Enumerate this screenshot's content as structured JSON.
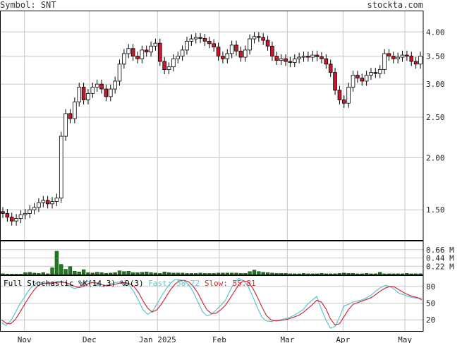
{
  "header": {
    "symbol_prefix": "Symbol:",
    "symbol": "SNT",
    "brand": "stockta.com"
  },
  "colors": {
    "up_candle": "#ffffff",
    "down_candle": "#c9182b",
    "volume_bar": "#1f7a1f",
    "fast_line": "#5ec3cf",
    "slow_line": "#cc2d3a",
    "grid": "#c8c8c8",
    "frame": "#000000"
  },
  "stochastic": {
    "title": "Full Stochastic %K(14,3) %D(3)",
    "fast_label": "Fast:",
    "fast_value": "58.72",
    "slow_label": "Slow:",
    "slow_value": "55.81"
  },
  "chart_data": [
    {
      "type": "candlestick",
      "scale": "log",
      "ylim": [
        1.27,
        4.5
      ],
      "yticks": [
        "4.00",
        "3.50",
        "3.00",
        "2.50",
        "2.00",
        "1.50"
      ],
      "xticks": [
        "Nov",
        "Dec",
        "Jan 2025",
        "Feb",
        "Mar",
        "Apr",
        "May"
      ],
      "closes": [
        1.47,
        1.44,
        1.41,
        1.43,
        1.46,
        1.47,
        1.5,
        1.52,
        1.56,
        1.58,
        1.55,
        1.57,
        1.6,
        2.25,
        2.55,
        2.48,
        2.72,
        2.95,
        2.75,
        2.85,
        2.95,
        3.0,
        2.92,
        2.8,
        2.92,
        3.05,
        3.35,
        3.55,
        3.65,
        3.5,
        3.45,
        3.62,
        3.58,
        3.7,
        3.76,
        3.4,
        3.25,
        3.3,
        3.45,
        3.5,
        3.62,
        3.8,
        3.85,
        3.88,
        3.86,
        3.8,
        3.75,
        3.68,
        3.5,
        3.45,
        3.55,
        3.72,
        3.6,
        3.48,
        3.62,
        3.85,
        3.9,
        3.88,
        3.82,
        3.7,
        3.5,
        3.42,
        3.45,
        3.4,
        3.38,
        3.45,
        3.48,
        3.5,
        3.48,
        3.52,
        3.49,
        3.45,
        3.35,
        3.2,
        2.9,
        2.75,
        2.7,
        2.95,
        3.15,
        3.1,
        3.05,
        3.15,
        3.2,
        3.18,
        3.25,
        3.55,
        3.5,
        3.45,
        3.48,
        3.52,
        3.5,
        3.4,
        3.35,
        3.5
      ],
      "volume": {
        "unit": "M",
        "yticks": [
          "0.66",
          "0.44",
          "0.22"
        ],
        "ylim": [
          0,
          0.9
        ],
        "values": [
          0.02,
          0.01,
          0.01,
          0.01,
          0.01,
          0.05,
          0.06,
          0.04,
          0.03,
          0.05,
          0.02,
          0.18,
          0.62,
          0.27,
          0.14,
          0.21,
          0.09,
          0.07,
          0.13,
          0.05,
          0.04,
          0.06,
          0.05,
          0.03,
          0.04,
          0.05,
          0.1,
          0.08,
          0.09,
          0.05,
          0.05,
          0.06,
          0.07,
          0.05,
          0.04,
          0.03,
          0.07,
          0.05,
          0.04,
          0.04,
          0.04,
          0.03,
          0.03,
          0.03,
          0.04,
          0.03,
          0.03,
          0.03,
          0.04,
          0.04,
          0.04,
          0.04,
          0.04,
          0.03,
          0.03,
          0.08,
          0.12,
          0.08,
          0.06,
          0.05,
          0.04,
          0.03,
          0.03,
          0.03,
          0.02,
          0.02,
          0.02,
          0.03,
          0.02,
          0.02,
          0.02,
          0.03,
          0.02,
          0.02,
          0.02,
          0.03,
          0.04,
          0.03,
          0.03,
          0.02,
          0.02,
          0.03,
          0.02,
          0.02,
          0.06,
          0.02,
          0.02,
          0.02,
          0.02,
          0.02,
          0.03,
          0.02,
          0.02,
          0.02
        ]
      }
    },
    {
      "type": "line",
      "yticks": [
        "80",
        "50",
        "20"
      ],
      "ylim": [
        0,
        100
      ],
      "series": [
        {
          "name": "Fast",
          "values": [
            15,
            10,
            18,
            32,
            48,
            60,
            73,
            82,
            88,
            86,
            85,
            87,
            88,
            89,
            86,
            80,
            76,
            79,
            86,
            89,
            87,
            82,
            80,
            82,
            85,
            87,
            88,
            86,
            82,
            70,
            55,
            38,
            30,
            35,
            48,
            62,
            75,
            86,
            92,
            92,
            90,
            83,
            70,
            52,
            35,
            27,
            30,
            38,
            46,
            55,
            72,
            87,
            94,
            90,
            80,
            62,
            42,
            25,
            18,
            17,
            19,
            20,
            22,
            24,
            28,
            33,
            38,
            48,
            55,
            62,
            40,
            20,
            5,
            8,
            25,
            45,
            48,
            52,
            54,
            56,
            60,
            65,
            72,
            78,
            82,
            80,
            75,
            68,
            65,
            62,
            60,
            59,
            58.72
          ]
        },
        {
          "name": "Slow",
          "values": [
            20,
            14,
            13,
            20,
            33,
            47,
            60,
            72,
            81,
            85,
            86,
            86,
            87,
            88,
            87,
            84,
            80,
            78,
            80,
            85,
            87,
            86,
            83,
            81,
            82,
            84,
            86,
            87,
            85,
            80,
            69,
            54,
            41,
            34,
            38,
            48,
            61,
            74,
            84,
            90,
            91,
            88,
            80,
            68,
            52,
            38,
            31,
            32,
            38,
            46,
            58,
            71,
            84,
            90,
            88,
            77,
            61,
            43,
            28,
            20,
            18,
            19,
            20,
            22,
            25,
            28,
            33,
            40,
            47,
            55,
            52,
            40,
            22,
            11,
            13,
            26,
            39,
            48,
            51,
            54,
            57,
            60,
            66,
            72,
            77,
            80,
            79,
            74,
            69,
            65,
            62,
            60,
            55.81
          ]
        }
      ]
    }
  ]
}
